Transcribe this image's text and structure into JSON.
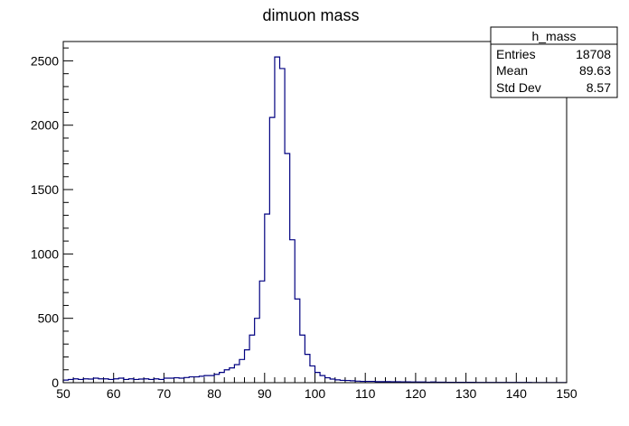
{
  "chart_data": {
    "type": "bar",
    "title": "dimuon mass",
    "xlabel": "",
    "ylabel": "",
    "xlim": [
      50,
      150
    ],
    "ylim": [
      0,
      2650
    ],
    "bin_width": 1,
    "x_ticks": [
      50,
      60,
      70,
      80,
      90,
      100,
      110,
      120,
      130,
      140,
      150
    ],
    "y_ticks": [
      0,
      500,
      1000,
      1500,
      2000,
      2500
    ],
    "grid": false,
    "series": [
      {
        "name": "h_mass",
        "color": "#000080",
        "bin_low_edges": [
          50,
          51,
          52,
          53,
          54,
          55,
          56,
          57,
          58,
          59,
          60,
          61,
          62,
          63,
          64,
          65,
          66,
          67,
          68,
          69,
          70,
          71,
          72,
          73,
          74,
          75,
          76,
          77,
          78,
          79,
          80,
          81,
          82,
          83,
          84,
          85,
          86,
          87,
          88,
          89,
          90,
          91,
          92,
          93,
          94,
          95,
          96,
          97,
          98,
          99,
          100,
          101,
          102,
          103,
          104,
          105,
          106,
          107,
          108,
          109,
          110,
          111,
          112,
          113,
          114,
          115,
          116,
          117,
          118,
          119,
          120,
          121,
          122,
          123,
          124,
          125,
          126,
          127,
          128,
          129,
          130,
          131,
          132,
          133,
          134,
          135,
          136,
          137,
          138,
          139,
          140,
          141,
          142,
          143,
          144,
          145,
          146,
          147,
          148,
          149
        ],
        "values": [
          20,
          25,
          30,
          25,
          30,
          28,
          35,
          30,
          30,
          25,
          30,
          35,
          25,
          30,
          25,
          28,
          30,
          25,
          30,
          25,
          35,
          35,
          38,
          35,
          40,
          45,
          45,
          50,
          55,
          55,
          65,
          80,
          100,
          115,
          140,
          180,
          255,
          370,
          500,
          790,
          1310,
          2060,
          2530,
          2440,
          1780,
          1110,
          650,
          370,
          220,
          130,
          80,
          55,
          38,
          28,
          22,
          18,
          17,
          15,
          12,
          10,
          10,
          10,
          8,
          8,
          8,
          7,
          7,
          6,
          6,
          5,
          5,
          5,
          4,
          5,
          4,
          4,
          3,
          3,
          3,
          3,
          3,
          3,
          2,
          2,
          2,
          2,
          2,
          2,
          2,
          2,
          2,
          2,
          2,
          1,
          1,
          1,
          1,
          1,
          1,
          1
        ]
      }
    ],
    "stats_box": {
      "title": "h_mass",
      "rows": [
        {
          "label": "Entries",
          "value": "18708"
        },
        {
          "label": "Mean",
          "value": "89.63"
        },
        {
          "label": "Std Dev",
          "value": "8.57"
        }
      ]
    }
  }
}
